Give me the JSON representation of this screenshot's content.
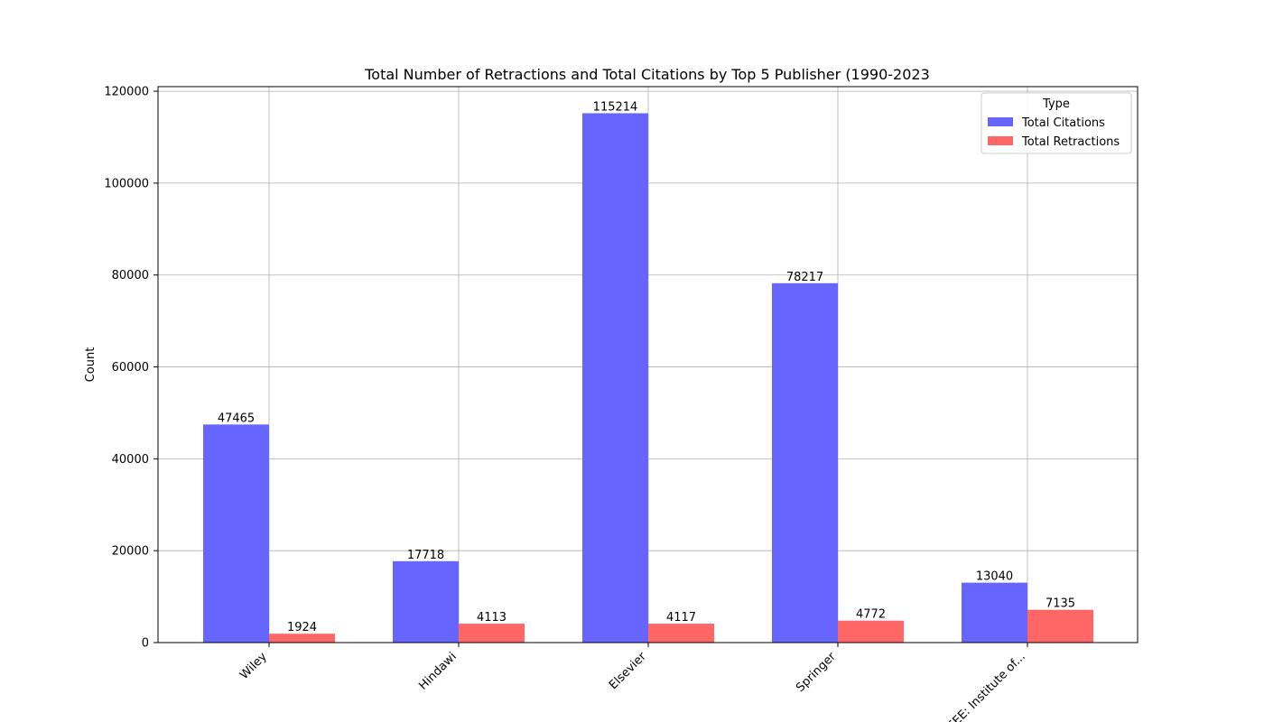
{
  "chart_data": {
    "type": "bar",
    "title": "Total Number of Retractions and Total Citations by Top 5 Publisher (1990-2023",
    "xlabel": "",
    "ylabel": "Count",
    "categories": [
      "Wiley",
      "Hindawi",
      "Elsevier",
      "Springer",
      "IEEE: Institute of..."
    ],
    "series": [
      {
        "name": "Total Citations",
        "values": [
          47465,
          17718,
          115214,
          78217,
          13040
        ],
        "color": "#6666ff"
      },
      {
        "name": "Total Retractions",
        "values": [
          1924,
          4113,
          4117,
          4772,
          7135
        ],
        "color": "#ff6666"
      }
    ],
    "ylim": [
      0,
      121000
    ],
    "yticks": [
      0,
      20000,
      40000,
      60000,
      80000,
      100000,
      120000
    ],
    "grid": true,
    "legend": {
      "title": "Type",
      "position": "top-right"
    },
    "data_labels": true
  }
}
